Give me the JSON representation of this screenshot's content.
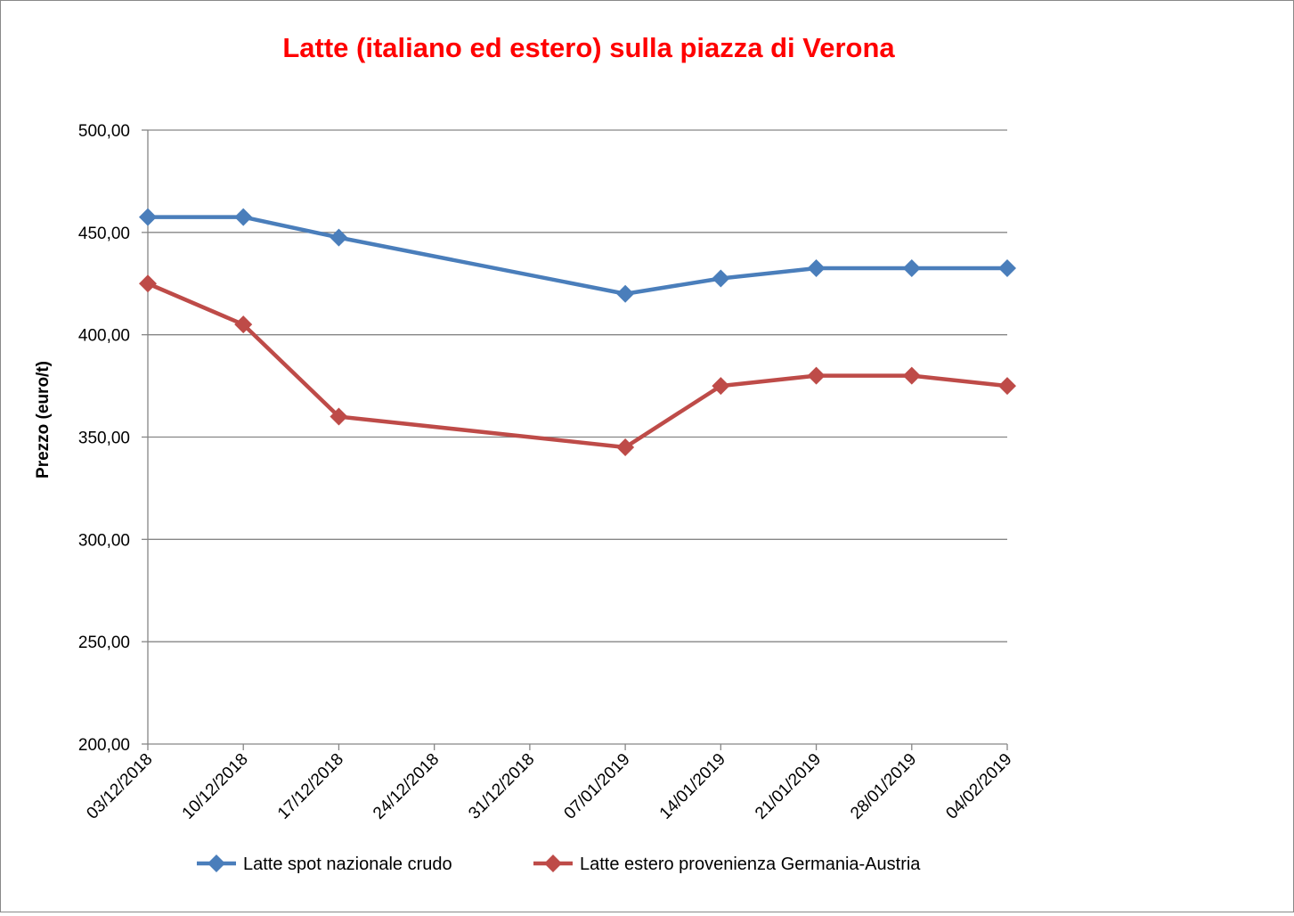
{
  "chart_data": {
    "type": "line",
    "title": "Latte (italiano ed estero) sulla piazza di Verona",
    "xlabel": "",
    "ylabel": "Prezzo (euro/t)",
    "ylim": [
      200,
      500
    ],
    "yticks": [
      "200,00",
      "250,00",
      "300,00",
      "350,00",
      "400,00",
      "450,00",
      "500,00"
    ],
    "ytick_values": [
      200,
      250,
      300,
      350,
      400,
      450,
      500
    ],
    "categories": [
      "03/12/2018",
      "10/12/2018",
      "17/12/2018",
      "24/12/2018",
      "31/12/2018",
      "07/01/2019",
      "14/01/2019",
      "21/01/2019",
      "28/01/2019",
      "04/02/2019"
    ],
    "grid": true,
    "legend": "bottom",
    "series": [
      {
        "name": "Latte spot nazionale crudo",
        "color": "#4a7ebb",
        "values": [
          457.5,
          457.5,
          447.5,
          null,
          null,
          420,
          427.5,
          432.5,
          432.5,
          432.5
        ]
      },
      {
        "name": "Latte estero provenienza Germania-Austria",
        "color": "#be4b48",
        "values": [
          425,
          405,
          360,
          null,
          null,
          345,
          375,
          380,
          380,
          375
        ]
      }
    ]
  }
}
